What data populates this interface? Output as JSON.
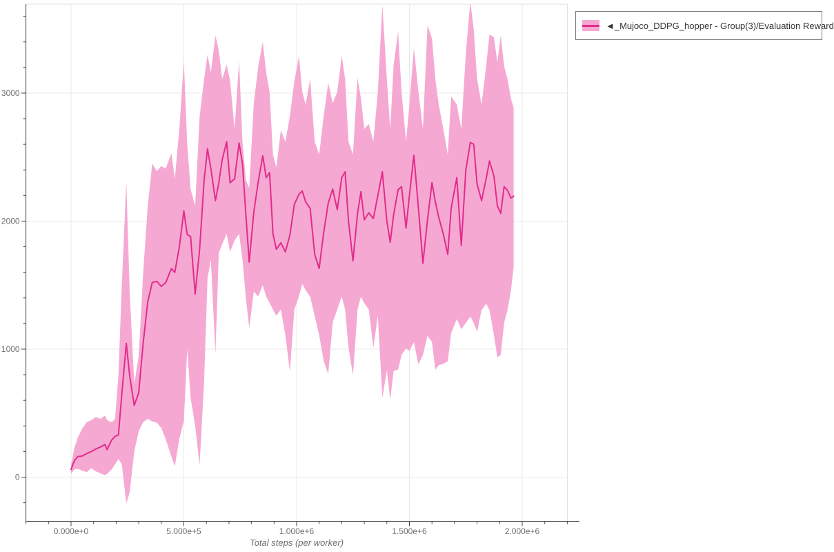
{
  "legend": {
    "label": "◄_Mujoco_DDPG_hopper - Group(3)/Evaluation Reward"
  },
  "colors": {
    "line": "#e32b8c",
    "band": "#f5a9d2",
    "grid": "#e9e9e9",
    "border": "#e0e0e0",
    "axis": "#3f3f46",
    "tick": "#4a4a50",
    "tick_label": "#6e6e6e",
    "legend_border": "#7a7a7a",
    "legend_text": "#333333",
    "background": "#ffffff"
  },
  "chart_data": {
    "type": "line",
    "title": "",
    "xlabel": "Total steps (per worker)",
    "ylabel": "",
    "grid": true,
    "legend_position": "top-right-outside",
    "x_range": [
      -200000,
      2200000
    ],
    "y_range": [
      -345,
      3695
    ],
    "x_minor_step": 100000,
    "y_minor_step": 200,
    "x_ticks": [
      {
        "value": 0,
        "label": "0.000e+0"
      },
      {
        "value": 500000,
        "label": "5.000e+5"
      },
      {
        "value": 1000000,
        "label": "1.000e+6"
      },
      {
        "value": 1500000,
        "label": "1.500e+6"
      },
      {
        "value": 2000000,
        "label": "2.000e+6"
      }
    ],
    "y_ticks": [
      {
        "value": 0,
        "label": "0"
      },
      {
        "value": 1000,
        "label": "1000"
      },
      {
        "value": 2000,
        "label": "2000"
      },
      {
        "value": 3000,
        "label": "3000"
      }
    ],
    "series": [
      {
        "name": "◄_Mujoco_DDPG_hopper - Group(3)/Evaluation Reward",
        "color": "#e32b8c",
        "band_color": "#f5a9d2",
        "x": [
          0,
          15000,
          30000,
          50000,
          70000,
          90000,
          110000,
          130000,
          150000,
          160000,
          180000,
          195000,
          210000,
          225000,
          245000,
          260000,
          280000,
          300000,
          320000,
          340000,
          360000,
          380000,
          400000,
          420000,
          445000,
          460000,
          480000,
          500000,
          515000,
          530000,
          550000,
          570000,
          590000,
          605000,
          620000,
          640000,
          655000,
          670000,
          690000,
          705000,
          725000,
          745000,
          760000,
          775000,
          790000,
          810000,
          830000,
          850000,
          865000,
          880000,
          895000,
          910000,
          930000,
          950000,
          970000,
          990000,
          1010000,
          1025000,
          1040000,
          1060000,
          1080000,
          1100000,
          1120000,
          1140000,
          1160000,
          1180000,
          1200000,
          1215000,
          1230000,
          1250000,
          1270000,
          1285000,
          1300000,
          1320000,
          1340000,
          1360000,
          1380000,
          1400000,
          1415000,
          1430000,
          1450000,
          1465000,
          1485000,
          1500000,
          1520000,
          1540000,
          1560000,
          1580000,
          1600000,
          1615000,
          1630000,
          1650000,
          1670000,
          1685000,
          1710000,
          1730000,
          1750000,
          1770000,
          1785000,
          1800000,
          1820000,
          1840000,
          1855000,
          1875000,
          1890000,
          1905000,
          1920000,
          1935000,
          1950000,
          1962000
        ],
        "mean": [
          60,
          130,
          160,
          165,
          185,
          200,
          220,
          235,
          255,
          215,
          290,
          318,
          330,
          650,
          1045,
          790,
          560,
          660,
          1050,
          1370,
          1520,
          1530,
          1490,
          1520,
          1630,
          1600,
          1800,
          2080,
          1895,
          1880,
          1430,
          1780,
          2320,
          2565,
          2410,
          2160,
          2300,
          2480,
          2620,
          2300,
          2330,
          2610,
          2450,
          2050,
          1680,
          2070,
          2310,
          2510,
          2340,
          2380,
          1900,
          1780,
          1830,
          1760,
          1890,
          2130,
          2210,
          2235,
          2150,
          2100,
          1740,
          1630,
          1910,
          2140,
          2250,
          2090,
          2340,
          2385,
          2000,
          1690,
          2060,
          2230,
          2010,
          2065,
          2020,
          2200,
          2385,
          2000,
          1835,
          2050,
          2245,
          2270,
          1945,
          2200,
          2515,
          2100,
          1670,
          2010,
          2300,
          2150,
          2030,
          1900,
          1740,
          2100,
          2340,
          1810,
          2400,
          2615,
          2600,
          2290,
          2160,
          2330,
          2470,
          2350,
          2120,
          2060,
          2270,
          2240,
          2180,
          2195
        ],
        "band_upper": [
          95,
          230,
          310,
          380,
          430,
          445,
          470,
          455,
          480,
          445,
          430,
          455,
          800,
          1500,
          2310,
          1450,
          730,
          950,
          1600,
          2120,
          2450,
          2390,
          2430,
          2410,
          2530,
          2330,
          2720,
          3255,
          2600,
          2250,
          2120,
          2820,
          3110,
          3300,
          3160,
          3450,
          3330,
          3110,
          3220,
          3100,
          2720,
          3255,
          2620,
          2320,
          2260,
          2920,
          3210,
          3400,
          3160,
          3010,
          2520,
          2420,
          2710,
          2620,
          2820,
          3090,
          3290,
          3010,
          2910,
          3110,
          2620,
          2520,
          2820,
          3080,
          2920,
          3010,
          3290,
          3110,
          2620,
          2520,
          3120,
          2960,
          2720,
          2760,
          2620,
          3010,
          3690,
          3110,
          2720,
          3220,
          3480,
          3010,
          2620,
          2910,
          3355,
          3010,
          2720,
          3530,
          3430,
          3110,
          2910,
          2720,
          2520,
          2975,
          2910,
          2720,
          3310,
          3715,
          3500,
          3110,
          2910,
          3210,
          3460,
          3435,
          3240,
          3450,
          3210,
          3110,
          2960,
          2885
        ],
        "band_lower": [
          25,
          60,
          65,
          50,
          40,
          70,
          45,
          30,
          15,
          25,
          60,
          100,
          140,
          100,
          -205,
          -120,
          200,
          360,
          430,
          455,
          435,
          425,
          385,
          295,
          160,
          85,
          300,
          440,
          1000,
          620,
          400,
          95,
          750,
          1550,
          1700,
          960,
          1750,
          1820,
          1900,
          1760,
          1850,
          1900,
          1700,
          1400,
          1165,
          1450,
          1410,
          1500,
          1410,
          1360,
          1310,
          1260,
          1310,
          1110,
          825,
          1310,
          1410,
          1510,
          1460,
          1410,
          1260,
          1110,
          910,
          805,
          1210,
          1310,
          1410,
          1310,
          1010,
          795,
          1310,
          1410,
          1360,
          1310,
          1010,
          1260,
          620,
          835,
          605,
          830,
          840,
          955,
          1005,
          985,
          1055,
          880,
          955,
          1105,
          1055,
          840,
          875,
          885,
          905,
          1125,
          1235,
          1155,
          1205,
          1255,
          1205,
          1135,
          1305,
          1355,
          1305,
          1105,
          935,
          955,
          1205,
          1305,
          1455,
          1640
        ]
      }
    ]
  }
}
